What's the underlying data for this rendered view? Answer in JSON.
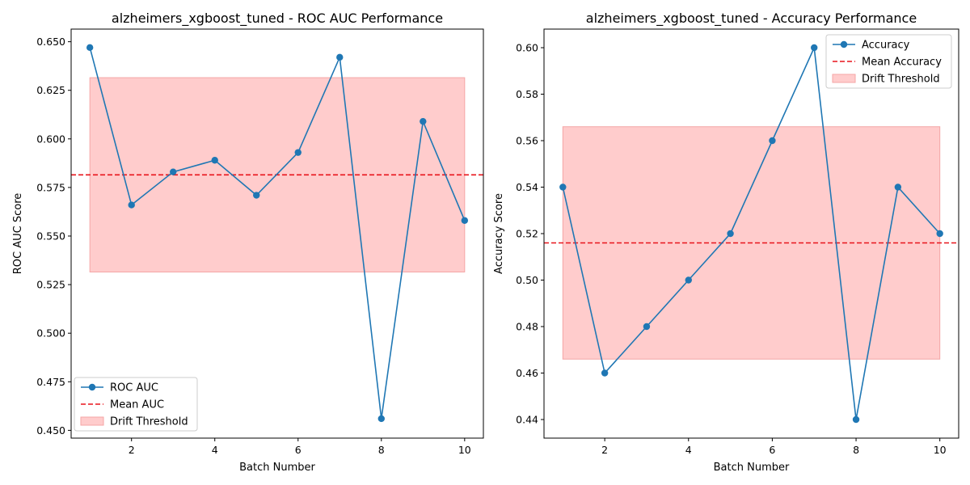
{
  "colors": {
    "series": "#1f77b4",
    "mean": "#e8141b",
    "band_fill": "#ffcccc",
    "band_edge": "#f4a6a6",
    "axis": "#000000"
  },
  "chart_data": [
    {
      "type": "line",
      "title": "alzheimers_xgboost_tuned - ROC AUC Performance",
      "xlabel": "Batch Number",
      "ylabel": "ROC AUC Score",
      "x": [
        1,
        2,
        3,
        4,
        5,
        6,
        7,
        8,
        9,
        10
      ],
      "series": [
        {
          "name": "ROC AUC",
          "values": [
            0.647,
            0.566,
            0.583,
            0.589,
            0.571,
            0.593,
            0.642,
            0.456,
            0.609,
            0.558
          ]
        }
      ],
      "mean": {
        "name": "Mean AUC",
        "value": 0.5815
      },
      "band": {
        "name": "Drift Threshold",
        "low": 0.5315,
        "high": 0.6315,
        "x_start": 1,
        "x_end": 10
      },
      "xlim": [
        0.55,
        10.45
      ],
      "ylim": [
        0.446,
        0.6565
      ],
      "xticks": [
        2,
        4,
        6,
        8,
        10
      ],
      "xtick_labels": [
        "2",
        "4",
        "6",
        "8",
        "10"
      ],
      "yticks": [
        0.45,
        0.475,
        0.5,
        0.525,
        0.55,
        0.575,
        0.6,
        0.625,
        0.65
      ],
      "ytick_labels": [
        "0.450",
        "0.475",
        "0.500",
        "0.525",
        "0.550",
        "0.575",
        "0.600",
        "0.625",
        "0.650"
      ],
      "legend_position": "lower-left"
    },
    {
      "type": "line",
      "title": "alzheimers_xgboost_tuned - Accuracy Performance",
      "xlabel": "Batch Number",
      "ylabel": "Accuracy Score",
      "x": [
        1,
        2,
        3,
        4,
        5,
        6,
        7,
        8,
        9,
        10
      ],
      "series": [
        {
          "name": "Accuracy",
          "values": [
            0.54,
            0.46,
            0.48,
            0.5,
            0.52,
            0.56,
            0.6,
            0.44,
            0.54,
            0.52
          ]
        }
      ],
      "mean": {
        "name": "Mean Accuracy",
        "value": 0.516
      },
      "band": {
        "name": "Drift Threshold",
        "low": 0.466,
        "high": 0.566,
        "x_start": 1,
        "x_end": 10
      },
      "xlim": [
        0.55,
        10.45
      ],
      "ylim": [
        0.432,
        0.608
      ],
      "xticks": [
        2,
        4,
        6,
        8,
        10
      ],
      "xtick_labels": [
        "2",
        "4",
        "6",
        "8",
        "10"
      ],
      "yticks": [
        0.44,
        0.46,
        0.48,
        0.5,
        0.52,
        0.54,
        0.56,
        0.58,
        0.6
      ],
      "ytick_labels": [
        "0.44",
        "0.46",
        "0.48",
        "0.50",
        "0.52",
        "0.54",
        "0.56",
        "0.58",
        "0.60"
      ],
      "legend_position": "top-right"
    }
  ]
}
